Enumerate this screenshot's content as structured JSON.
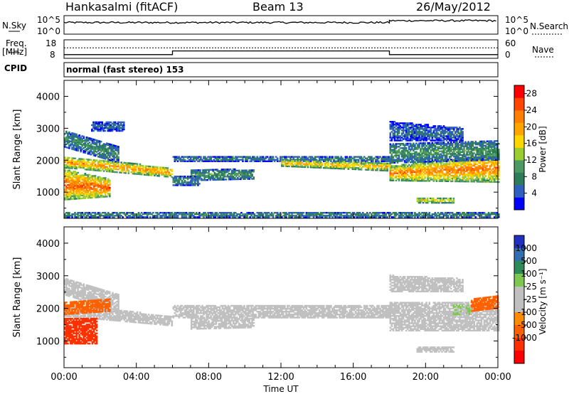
{
  "header": {
    "station": "Hankasalmi (fitACF)",
    "beam": "Beam 13",
    "date": "26/May/2012"
  },
  "panels": {
    "nsky": {
      "label": "N.Sky",
      "left_ticks": [
        "10^5",
        "10^0"
      ],
      "right_label": "N.Search",
      "right_ticks": [
        "10^5",
        "10^0"
      ]
    },
    "freq": {
      "label_line1": "Freq.",
      "label_line2": "[MHz]",
      "left_ticks": [
        "18",
        "8"
      ],
      "right_label": "Nave",
      "right_ticks": [
        "60",
        "0"
      ]
    },
    "cpid": {
      "label": "CPID",
      "text": "normal (fast stereo) 153"
    }
  },
  "axes": {
    "ylabel": "Slant Range [km]",
    "xlabel": "Time UT",
    "yticks": [
      "1000",
      "2000",
      "3000",
      "4000"
    ],
    "xticks": [
      "00:00",
      "04:00",
      "08:00",
      "12:00",
      "16:00",
      "20:00",
      "00:00"
    ]
  },
  "power_scale": {
    "label": "Power [dB]",
    "ticks": [
      "4",
      "8",
      "12",
      "16",
      "20",
      "24",
      "28"
    ],
    "colors": [
      "#0000ff",
      "#2f5fc0",
      "#2e7d5a",
      "#4c9a62",
      "#9acd32",
      "#ffd700",
      "#ffa500",
      "#ff7f00",
      "#ff4500",
      "#ff0000"
    ]
  },
  "velocity_scale": {
    "label": "Velocity [m s⁻¹]",
    "ticks": [
      "1000",
      "500",
      "100",
      "25",
      "-25",
      "-100",
      "-500",
      "-1000"
    ],
    "colors": [
      "#2030c0",
      "#3070b0",
      "#2e8b57",
      "#7ec850",
      "#c0c0c0",
      "#c0c0c0",
      "#ff8c00",
      "#ff6000",
      "#ff3000",
      "#ff0000"
    ]
  },
  "chart_data": {
    "type": "heatmap",
    "x_range_hours": [
      0,
      24
    ],
    "y_range_km": [
      180,
      4500
    ],
    "power_range_db": [
      0,
      30
    ],
    "velocity_range_ms": [
      -1000,
      1000
    ],
    "nsky_log_range": [
      0,
      5
    ],
    "nave_range": [
      0,
      60
    ],
    "freq_range_mhz": [
      8,
      18
    ],
    "frequency_segments": [
      {
        "start": 0,
        "end": 6,
        "mhz": 10
      },
      {
        "start": 6,
        "end": 18,
        "mhz": 12
      },
      {
        "start": 18,
        "end": 24,
        "mhz": 10
      }
    ],
    "nave_segments": [
      {
        "start": 0,
        "end": 24,
        "value": 34
      }
    ],
    "nsky_segments": [
      {
        "start": 0,
        "end": 18,
        "log": 2.9
      },
      {
        "start": 18,
        "end": 24,
        "log": 3.4
      }
    ],
    "power_bands": [
      {
        "t0": 0.0,
        "t1": 6.0,
        "r0": 1750,
        "r1": 2100,
        "r0e": 1450,
        "r1e": 1750,
        "p": 22
      },
      {
        "t0": 0.0,
        "t1": 3.0,
        "r0": 2400,
        "r1": 2900,
        "r0e": 1900,
        "r1e": 2400,
        "p": 9
      },
      {
        "t0": 0.0,
        "t1": 2.5,
        "r0": 750,
        "r1": 1700,
        "r0e": 850,
        "r1e": 1400,
        "p": 25
      },
      {
        "t0": 1.5,
        "t1": 3.3,
        "r0": 2900,
        "r1": 3200,
        "r0e": 2900,
        "r1e": 3200,
        "p": 6
      },
      {
        "t0": 6.0,
        "t1": 18.0,
        "r0": 1950,
        "r1": 2100,
        "r0e": 1950,
        "r1e": 2100,
        "p": 8
      },
      {
        "t0": 7.0,
        "t1": 10.5,
        "r0": 1350,
        "r1": 1700,
        "r0e": 1400,
        "r1e": 1700,
        "p": 10
      },
      {
        "t0": 12.0,
        "t1": 18.0,
        "r0": 1800,
        "r1": 2000,
        "r0e": 1650,
        "r1e": 1900,
        "p": 20
      },
      {
        "t0": 6.0,
        "t1": 7.5,
        "r0": 1200,
        "r1": 1500,
        "r0e": 1200,
        "r1e": 1500,
        "p": 8
      },
      {
        "t0": 18.0,
        "t1": 24.0,
        "r0": 1350,
        "r1": 1800,
        "r0e": 1300,
        "r1e": 2200,
        "p": 23
      },
      {
        "t0": 18.0,
        "t1": 24.0,
        "r0": 1900,
        "r1": 2500,
        "r0e": 2000,
        "r1e": 2600,
        "p": 10
      },
      {
        "t0": 18.0,
        "t1": 22.0,
        "r0": 2600,
        "r1": 3200,
        "r0e": 2600,
        "r1e": 3000,
        "p": 6
      },
      {
        "t0": 19.5,
        "t1": 21.5,
        "r0": 650,
        "r1": 800,
        "r0e": 650,
        "r1e": 800,
        "p": 18
      },
      {
        "t0": 0.0,
        "t1": 24.0,
        "r0": 200,
        "r1": 350,
        "r0e": 200,
        "r1e": 350,
        "p": 9
      }
    ],
    "velocity_bands": [
      {
        "t0": 0.0,
        "t1": 6.0,
        "r0": 1750,
        "r1": 2100,
        "r0e": 1450,
        "r1e": 1750,
        "v": 0
      },
      {
        "t0": 0.0,
        "t1": 3.0,
        "r0": 2400,
        "r1": 2900,
        "r0e": 1900,
        "r1e": 2400,
        "v": 0
      },
      {
        "t0": 0.0,
        "t1": 1.8,
        "r0": 900,
        "r1": 1700,
        "r0e": 900,
        "r1e": 1700,
        "v": -300
      },
      {
        "t0": 0.0,
        "t1": 2.5,
        "r0": 1800,
        "r1": 2200,
        "r0e": 1900,
        "r1e": 2300,
        "v": -150
      },
      {
        "t0": 6.0,
        "t1": 18.0,
        "r0": 1700,
        "r1": 2100,
        "r0e": 1700,
        "r1e": 2100,
        "v": 0
      },
      {
        "t0": 7.0,
        "t1": 10.5,
        "r0": 1350,
        "r1": 1700,
        "r0e": 1400,
        "r1e": 1700,
        "v": 0
      },
      {
        "t0": 18.0,
        "t1": 24.0,
        "r0": 1300,
        "r1": 2200,
        "r0e": 1300,
        "r1e": 2200,
        "v": 0
      },
      {
        "t0": 18.0,
        "t1": 22.0,
        "r0": 2500,
        "r1": 3000,
        "r0e": 2500,
        "r1e": 2900,
        "v": 0
      },
      {
        "t0": 22.5,
        "t1": 24.0,
        "r0": 1900,
        "r1": 2300,
        "r0e": 2000,
        "r1e": 2400,
        "v": -200
      },
      {
        "t0": 21.5,
        "t1": 22.5,
        "r0": 1800,
        "r1": 2100,
        "r0e": 1800,
        "r1e": 2100,
        "v": 100
      },
      {
        "t0": 19.5,
        "t1": 21.5,
        "r0": 650,
        "r1": 800,
        "r0e": 650,
        "r1e": 800,
        "v": 80
      }
    ]
  }
}
